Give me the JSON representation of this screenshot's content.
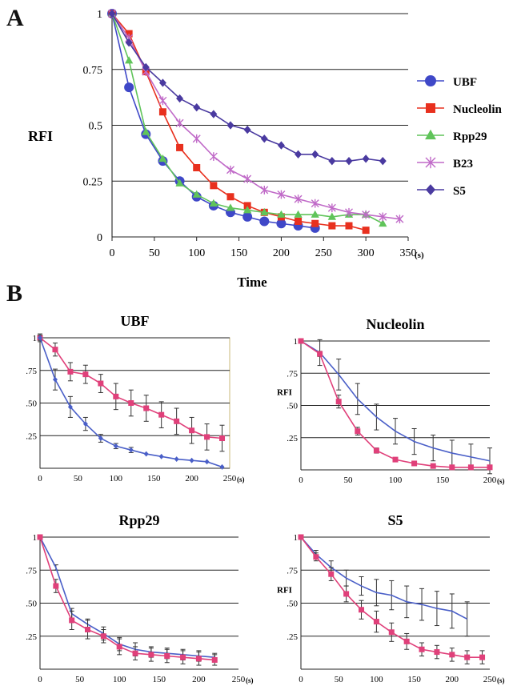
{
  "panel_labels": {
    "a": "A",
    "b": "B"
  },
  "colors": {
    "UBF": "#3f48c8",
    "Nucleolin": "#e8301e",
    "Rpp29": "#60c45a",
    "B23": "#c06ac8",
    "S5": "#4a3aa0",
    "pink": "#e0407a",
    "blue": "#4a5fc8",
    "grid": "#000000"
  },
  "chart_data": [
    {
      "id": "A",
      "type": "line",
      "ylabel": "RFI",
      "xlabel": "Time",
      "xunit": "(s)",
      "xlim": [
        0,
        350
      ],
      "ylim": [
        0,
        1
      ],
      "xticks": [
        "0",
        "50",
        "100",
        "150",
        "200",
        "250",
        "300",
        "350"
      ],
      "yticks": [
        "0",
        "0.25",
        "0.5",
        "0.75",
        "1"
      ],
      "grid": "horizontal",
      "legend": "right",
      "series": [
        {
          "name": "UBF",
          "marker": "circle",
          "x": [
            0,
            20,
            40,
            60,
            80,
            100,
            120,
            140,
            160,
            180,
            200,
            220,
            240
          ],
          "y": [
            1,
            0.67,
            0.46,
            0.34,
            0.25,
            0.18,
            0.14,
            0.11,
            0.09,
            0.07,
            0.06,
            0.05,
            0.04
          ]
        },
        {
          "name": "Nucleolin",
          "marker": "square",
          "x": [
            0,
            20,
            40,
            60,
            80,
            100,
            120,
            140,
            160,
            180,
            200,
            220,
            240,
            260,
            280,
            300
          ],
          "y": [
            1,
            0.91,
            0.74,
            0.56,
            0.4,
            0.31,
            0.23,
            0.18,
            0.14,
            0.11,
            0.09,
            0.07,
            0.06,
            0.05,
            0.05,
            0.03
          ]
        },
        {
          "name": "Rpp29",
          "marker": "triangle",
          "x": [
            0,
            20,
            40,
            60,
            80,
            100,
            120,
            140,
            160,
            180,
            200,
            220,
            240,
            260,
            280,
            300,
            320
          ],
          "y": [
            1,
            0.79,
            0.47,
            0.35,
            0.24,
            0.19,
            0.15,
            0.13,
            0.12,
            0.11,
            0.1,
            0.1,
            0.1,
            0.09,
            0.1,
            0.1,
            0.06
          ]
        },
        {
          "name": "B23",
          "marker": "star",
          "x": [
            0,
            20,
            40,
            60,
            80,
            100,
            120,
            140,
            160,
            180,
            200,
            220,
            240,
            260,
            280,
            300,
            320,
            340
          ],
          "y": [
            1,
            0.89,
            0.74,
            0.61,
            0.51,
            0.44,
            0.36,
            0.3,
            0.26,
            0.21,
            0.19,
            0.17,
            0.15,
            0.13,
            0.11,
            0.1,
            0.09,
            0.08
          ]
        },
        {
          "name": "S5",
          "marker": "diamond",
          "x": [
            0,
            20,
            40,
            60,
            80,
            100,
            120,
            140,
            160,
            180,
            200,
            220,
            240,
            260,
            280,
            300,
            320
          ],
          "y": [
            1,
            0.87,
            0.76,
            0.69,
            0.62,
            0.58,
            0.55,
            0.5,
            0.48,
            0.44,
            0.41,
            0.37,
            0.37,
            0.34,
            0.34,
            0.35,
            0.34
          ]
        }
      ]
    },
    {
      "id": "B-UBF",
      "type": "line",
      "title": "UBF",
      "ylabel": "",
      "xunit": "(s)",
      "xlim": [
        0,
        250
      ],
      "ylim": [
        0,
        1
      ],
      "xticks": [
        "0",
        "50",
        "100",
        "150",
        "200",
        "250"
      ],
      "yticks": [
        "",
        ".25",
        ".50",
        ".75",
        "1"
      ],
      "series": [
        {
          "name": "",
          "color": "pink",
          "marker": "square",
          "x": [
            0,
            20,
            40,
            60,
            80,
            100,
            120,
            140,
            160,
            180,
            200,
            220,
            240
          ],
          "y": [
            1,
            0.91,
            0.74,
            0.72,
            0.65,
            0.55,
            0.5,
            0.46,
            0.41,
            0.36,
            0.29,
            0.24,
            0.23
          ],
          "err": [
            0.03,
            0.05,
            0.07,
            0.07,
            0.07,
            0.1,
            0.1,
            0.1,
            0.1,
            0.1,
            0.1,
            0.1,
            0.1
          ]
        },
        {
          "name": "",
          "color": "blue",
          "marker": "diamond",
          "x": [
            0,
            20,
            40,
            60,
            80,
            100,
            120,
            140,
            160,
            180,
            200,
            220,
            240
          ],
          "y": [
            1,
            0.68,
            0.47,
            0.34,
            0.23,
            0.17,
            0.14,
            0.11,
            0.09,
            0.07,
            0.06,
            0.05,
            0.01
          ],
          "err": [
            0.02,
            0.08,
            0.08,
            0.05,
            0.03,
            0.02,
            0.02,
            0.01,
            0.01,
            0.01,
            0.01,
            0.01,
            0.01
          ]
        }
      ]
    },
    {
      "id": "B-Nucleolin",
      "type": "line",
      "title": "Nucleolin",
      "ylabel": "RFI",
      "xunit": "(s)",
      "xlim": [
        0,
        200
      ],
      "ylim": [
        0,
        1
      ],
      "xticks": [
        "0",
        "50",
        "100",
        "150",
        "200"
      ],
      "yticks": [
        "",
        ".25",
        ".50",
        ".75",
        "1"
      ],
      "series": [
        {
          "name": "",
          "color": "blue",
          "marker": "none",
          "x": [
            0,
            20,
            40,
            60,
            80,
            100,
            120,
            140,
            160,
            180,
            200
          ],
          "y": [
            1,
            0.91,
            0.74,
            0.55,
            0.41,
            0.3,
            0.22,
            0.17,
            0.13,
            0.1,
            0.07
          ],
          "err": [
            0.01,
            0.1,
            0.12,
            0.12,
            0.1,
            0.1,
            0.1,
            0.1,
            0.1,
            0.1,
            0.1
          ]
        },
        {
          "name": "",
          "color": "pink",
          "marker": "square",
          "x": [
            0,
            20,
            40,
            60,
            80,
            100,
            120,
            140,
            160,
            180,
            200
          ],
          "y": [
            1,
            0.9,
            0.53,
            0.3,
            0.15,
            0.08,
            0.05,
            0.03,
            0.02,
            0.02,
            0.02
          ],
          "err": [
            0.01,
            0.02,
            0.05,
            0.03,
            0.02,
            0.01,
            0.01,
            0.01,
            0.01,
            0.01,
            0.01
          ]
        }
      ]
    },
    {
      "id": "B-Rpp29",
      "type": "line",
      "title": "Rpp29",
      "ylabel": "",
      "xunit": "(s)",
      "xlim": [
        0,
        250
      ],
      "ylim": [
        0,
        1
      ],
      "xticks": [
        "0",
        "50",
        "100",
        "150",
        "200",
        "250"
      ],
      "yticks": [
        "",
        ".25",
        ".50",
        ".75",
        "1"
      ],
      "series": [
        {
          "name": "",
          "color": "blue",
          "marker": "none",
          "x": [
            0,
            20,
            40,
            60,
            80,
            100,
            120,
            140,
            160,
            180,
            200,
            220
          ],
          "y": [
            1,
            0.77,
            0.42,
            0.34,
            0.27,
            0.19,
            0.15,
            0.13,
            0.12,
            0.11,
            0.1,
            0.09
          ],
          "err": [
            0.01,
            0.02,
            0.04,
            0.04,
            0.05,
            0.05,
            0.05,
            0.04,
            0.04,
            0.04,
            0.04,
            0.03
          ]
        },
        {
          "name": "",
          "color": "pink",
          "marker": "square",
          "x": [
            0,
            20,
            40,
            60,
            80,
            100,
            120,
            140,
            160,
            180,
            200,
            220
          ],
          "y": [
            1,
            0.63,
            0.37,
            0.3,
            0.25,
            0.17,
            0.12,
            0.11,
            0.1,
            0.09,
            0.08,
            0.07
          ],
          "err": [
            0.01,
            0.05,
            0.07,
            0.07,
            0.05,
            0.06,
            0.05,
            0.05,
            0.05,
            0.05,
            0.05,
            0.04
          ]
        }
      ]
    },
    {
      "id": "B-S5",
      "type": "line",
      "title": "S5",
      "ylabel": "RFI",
      "xunit": "(s)",
      "xlim": [
        0,
        250
      ],
      "ylim": [
        0,
        1
      ],
      "xticks": [
        "0",
        "50",
        "100",
        "150",
        "200",
        "250"
      ],
      "yticks": [
        "",
        ".25",
        ".50",
        ".75",
        "1"
      ],
      "series": [
        {
          "name": "",
          "color": "blue",
          "marker": "none",
          "x": [
            0,
            20,
            40,
            60,
            80,
            100,
            120,
            140,
            160,
            180,
            200,
            220
          ],
          "y": [
            1,
            0.87,
            0.77,
            0.69,
            0.63,
            0.58,
            0.56,
            0.51,
            0.49,
            0.46,
            0.44,
            0.38
          ],
          "err": [
            0.01,
            0.03,
            0.05,
            0.06,
            0.07,
            0.1,
            0.11,
            0.12,
            0.12,
            0.13,
            0.13,
            0.13
          ]
        },
        {
          "name": "",
          "color": "pink",
          "marker": "square",
          "x": [
            0,
            20,
            40,
            60,
            80,
            100,
            120,
            140,
            160,
            180,
            200,
            220,
            240
          ],
          "y": [
            1,
            0.85,
            0.72,
            0.57,
            0.45,
            0.36,
            0.28,
            0.21,
            0.15,
            0.13,
            0.11,
            0.09,
            0.09
          ],
          "err": [
            0.01,
            0.03,
            0.05,
            0.06,
            0.07,
            0.08,
            0.07,
            0.06,
            0.05,
            0.05,
            0.05,
            0.05,
            0.05
          ]
        }
      ]
    }
  ]
}
